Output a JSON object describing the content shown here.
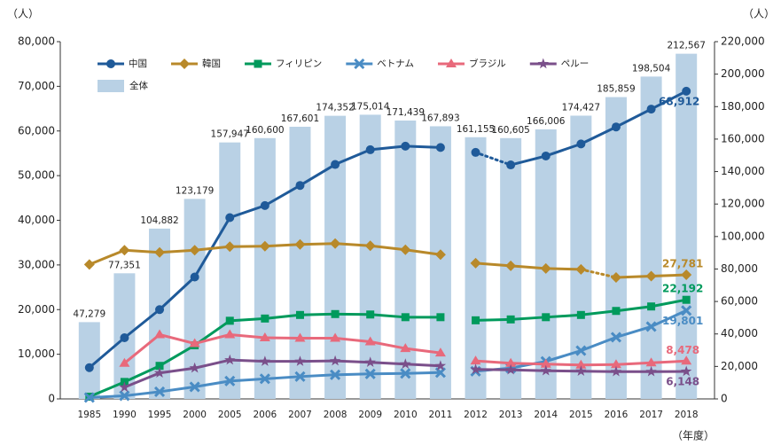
{
  "chart_data": {
    "type": "line",
    "y_label": "（人）",
    "y2_label": "（人）",
    "x_label": "（年度）",
    "categories": [
      "1985",
      "1990",
      "1995",
      "2000",
      "2005",
      "2006",
      "2007",
      "2008",
      "2009",
      "2010",
      "2011",
      "2012",
      "2013",
      "2014",
      "2015",
      "2016",
      "2017",
      "2018"
    ],
    "ylim": [
      0,
      80000
    ],
    "yticks": [
      0,
      {
        "value": 10000,
        "label": "10,000"
      },
      {
        "value": 20000,
        "label": "20,000"
      },
      {
        "value": 30000,
        "label": "30,000"
      },
      {
        "value": 40000,
        "label": "40,000"
      },
      {
        "value": 50000,
        "label": "50,000"
      },
      {
        "value": 60000,
        "label": "60,000"
      },
      {
        "value": 70000,
        "label": "70,000"
      },
      {
        "value": 80000,
        "label": "80,000"
      }
    ],
    "y2lim": [
      0,
      220000
    ],
    "y2ticks": [
      0,
      {
        "value": 20000,
        "label": "20,000"
      },
      {
        "value": 40000,
        "label": "40,000"
      },
      {
        "value": 60000,
        "label": "60,000"
      },
      {
        "value": 80000,
        "label": "80,000"
      },
      {
        "value": 100000,
        "label": "100,000"
      },
      {
        "value": 120000,
        "label": "120,000"
      },
      {
        "value": 140000,
        "label": "140,000"
      },
      {
        "value": 160000,
        "label": "160,000"
      },
      {
        "value": 180000,
        "label": "180,000"
      },
      {
        "value": 200000,
        "label": "200,000"
      },
      {
        "value": 220000,
        "label": "220,000"
      }
    ],
    "series": [
      {
        "name": "中国",
        "color": "#1f5a99",
        "marker": "circle",
        "values": [
          7000,
          13700,
          20000,
          27300,
          40600,
          43300,
          47800,
          52500,
          55800,
          56600,
          56300,
          55200,
          52400,
          54400,
          57100,
          60900,
          64900,
          68912
        ],
        "value_labels": [
          null,
          null,
          null,
          null,
          null,
          null,
          null,
          null,
          null,
          null,
          null,
          null,
          null,
          null,
          null,
          null,
          null,
          "68,912"
        ]
      },
      {
        "name": "韓国",
        "color": "#b8892a",
        "marker": "diamond",
        "values": [
          30100,
          33300,
          32800,
          33300,
          34100,
          34200,
          34600,
          34800,
          34300,
          33400,
          32300,
          30400,
          29800,
          29200,
          29000,
          27200,
          27500,
          27781
        ],
        "value_labels": [
          null,
          null,
          null,
          null,
          null,
          null,
          null,
          null,
          null,
          null,
          null,
          null,
          null,
          null,
          null,
          null,
          null,
          "27,781"
        ]
      },
      {
        "name": "フィリピン",
        "color": "#009a5c",
        "marker": "square",
        "values": [
          500,
          3800,
          7400,
          12000,
          17500,
          18000,
          18800,
          19000,
          18900,
          18300,
          18300,
          17600,
          17800,
          18300,
          18800,
          19700,
          20700,
          22192
        ],
        "value_labels": [
          null,
          null,
          null,
          null,
          null,
          null,
          null,
          null,
          null,
          null,
          null,
          null,
          null,
          null,
          null,
          null,
          null,
          "22,192"
        ]
      },
      {
        "name": "ベトナム",
        "color": "#4a8cc4",
        "marker": "x",
        "values": [
          300,
          700,
          1600,
          2700,
          4000,
          4500,
          5000,
          5400,
          5600,
          5700,
          5900,
          6200,
          6900,
          8400,
          10800,
          13800,
          16200,
          19801
        ],
        "value_labels": [
          null,
          null,
          null,
          null,
          null,
          null,
          null,
          null,
          null,
          null,
          null,
          null,
          null,
          null,
          null,
          null,
          null,
          "19,801"
        ]
      },
      {
        "name": "ブラジル",
        "color": "#e8697b",
        "marker": "triangle",
        "values": [
          null,
          8000,
          14400,
          12400,
          14400,
          13700,
          13600,
          13600,
          12800,
          11300,
          10300,
          8500,
          8000,
          7800,
          7600,
          7700,
          8100,
          8478
        ],
        "value_labels": [
          null,
          null,
          null,
          null,
          null,
          null,
          null,
          null,
          null,
          null,
          null,
          null,
          null,
          null,
          null,
          null,
          null,
          "8,478"
        ]
      },
      {
        "name": "ペルー",
        "color": "#7a4f8a",
        "marker": "star",
        "values": [
          null,
          2600,
          5800,
          6900,
          8700,
          8400,
          8400,
          8500,
          8200,
          7800,
          7400,
          6600,
          6500,
          6300,
          6200,
          6100,
          6100,
          6148
        ],
        "value_labels": [
          null,
          null,
          null,
          null,
          null,
          null,
          null,
          null,
          null,
          null,
          null,
          null,
          null,
          null,
          null,
          null,
          null,
          "6,148"
        ]
      },
      {
        "name": "全体",
        "color": "#b9d1e5",
        "type": "bar",
        "axis": "y2",
        "values": [
          47279,
          77351,
          104882,
          123179,
          157947,
          160600,
          167601,
          174352,
          175014,
          171439,
          167893,
          161155,
          160605,
          166006,
          174427,
          185859,
          198504,
          212567
        ],
        "value_labels": [
          "47,279",
          "77,351",
          "104,882",
          "123,179",
          "157,947",
          "160,600",
          "167,601",
          "174,352",
          "175,014",
          "171,439",
          "167,893",
          "161,155",
          "160,605",
          "166,006",
          "174,427",
          "185,859",
          "198,504",
          "212,567"
        ]
      }
    ]
  }
}
